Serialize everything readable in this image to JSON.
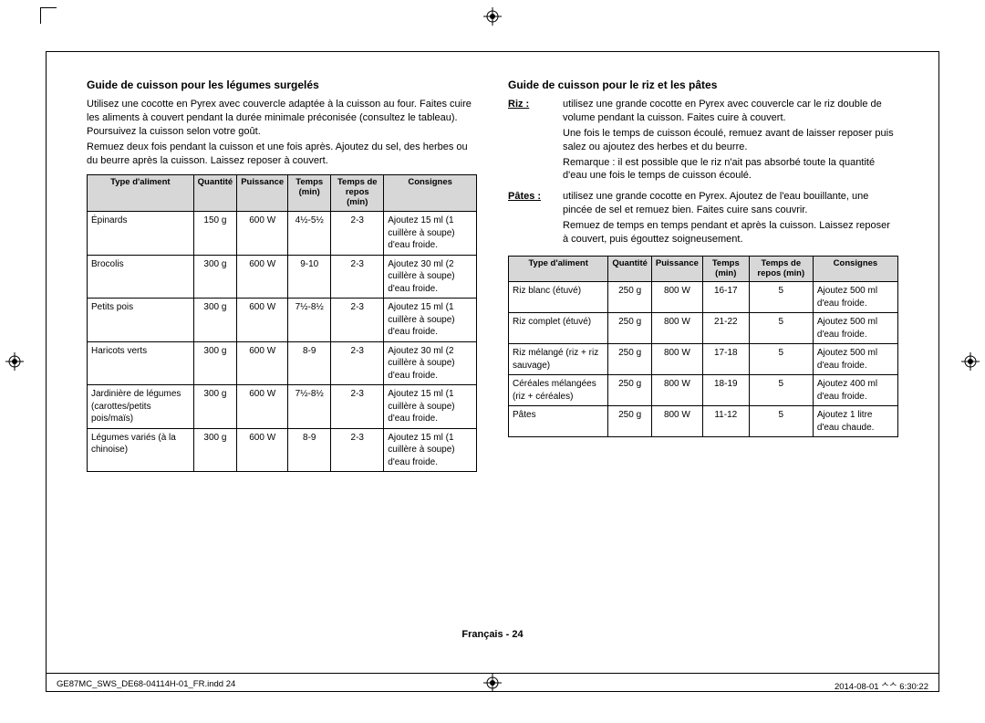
{
  "left": {
    "heading": "Guide de cuisson pour les légumes surgelés",
    "intro1": "Utilisez une cocotte en Pyrex avec couvercle adaptée à la cuisson au four. Faites cuire les aliments à couvert pendant la durée minimale préconisée (consultez le tableau). Poursuivez la cuisson selon votre goût.",
    "intro2": "Remuez deux fois pendant la cuisson et une fois après. Ajoutez du sel, des herbes ou du beurre après la cuisson. Laissez reposer à couvert.",
    "headers": [
      "Type d'aliment",
      "Quantité",
      "Puissance",
      "Temps (min)",
      "Temps de repos (min)",
      "Consignes"
    ],
    "rows": [
      {
        "food": "Épinards",
        "qty": "150 g",
        "pwr": "600 W",
        "time": "4½-5½",
        "rest": "2-3",
        "note": "Ajoutez 15 ml (1 cuillère à soupe) d'eau froide."
      },
      {
        "food": "Brocolis",
        "qty": "300 g",
        "pwr": "600 W",
        "time": "9-10",
        "rest": "2-3",
        "note": "Ajoutez 30 ml (2 cuillère à soupe) d'eau froide."
      },
      {
        "food": "Petits pois",
        "qty": "300 g",
        "pwr": "600 W",
        "time": "7½-8½",
        "rest": "2-3",
        "note": "Ajoutez 15 ml (1 cuillère à soupe) d'eau froide."
      },
      {
        "food": "Haricots verts",
        "qty": "300 g",
        "pwr": "600 W",
        "time": "8-9",
        "rest": "2-3",
        "note": "Ajoutez 30 ml (2 cuillère à soupe) d'eau froide."
      },
      {
        "food": "Jardinière de légumes (carottes/petits pois/maïs)",
        "qty": "300 g",
        "pwr": "600 W",
        "time": "7½-8½",
        "rest": "2-3",
        "note": "Ajoutez 15 ml (1 cuillère à soupe) d'eau froide."
      },
      {
        "food": "Légumes variés (à la chinoise)",
        "qty": "300 g",
        "pwr": "600 W",
        "time": "8-9",
        "rest": "2-3",
        "note": "Ajoutez 15 ml (1 cuillère à soupe) d'eau froide."
      }
    ]
  },
  "right": {
    "heading": "Guide de cuisson pour le riz et les pâtes",
    "riz_term": "Riz :",
    "riz1": "utilisez une grande cocotte en Pyrex avec couvercle car le riz double de volume pendant la cuisson. Faites cuire à couvert.",
    "riz2": "Une fois le temps de cuisson écoulé, remuez avant de laisser reposer puis salez ou ajoutez des herbes et du beurre.",
    "riz3": "Remarque : il est possible que le riz n'ait pas absorbé toute la quantité d'eau une fois le temps de cuisson écoulé.",
    "pates_term": "Pâtes :",
    "pates1": "utilisez une grande cocotte en Pyrex. Ajoutez de l'eau bouillante, une pincée de sel et remuez bien. Faites cuire sans couvrir.",
    "pates2": "Remuez de temps en temps pendant et après la cuisson. Laissez reposer à couvert, puis égouttez soigneusement.",
    "headers": [
      "Type d'aliment",
      "Quantité",
      "Puissance",
      "Temps (min)",
      "Temps de repos (min)",
      "Consignes"
    ],
    "rows": [
      {
        "food": "Riz blanc (étuvé)",
        "qty": "250 g",
        "pwr": "800 W",
        "time": "16-17",
        "rest": "5",
        "note": "Ajoutez 500 ml d'eau froide."
      },
      {
        "food": "Riz complet (étuvé)",
        "qty": "250 g",
        "pwr": "800 W",
        "time": "21-22",
        "rest": "5",
        "note": "Ajoutez 500 ml d'eau froide."
      },
      {
        "food": "Riz mélangé (riz + riz sauvage)",
        "qty": "250 g",
        "pwr": "800 W",
        "time": "17-18",
        "rest": "5",
        "note": "Ajoutez 500 ml d'eau froide."
      },
      {
        "food": "Céréales mélangées (riz + céréales)",
        "qty": "250 g",
        "pwr": "800 W",
        "time": "18-19",
        "rest": "5",
        "note": "Ajoutez 400 ml d'eau froide."
      },
      {
        "food": "Pâtes",
        "qty": "250 g",
        "pwr": "800 W",
        "time": "11-12",
        "rest": "5",
        "note": "Ajoutez 1 litre d'eau chaude."
      }
    ]
  },
  "footer": {
    "center": "Français - 24",
    "left": "GE87MC_SWS_DE68-04114H-01_FR.indd   24",
    "right": "2014-08-01   ᄉᄉ 6:30:22"
  },
  "colors": {
    "header_bg": "#d7d7d7",
    "border": "#000000",
    "text": "#000000",
    "bg": "#ffffff"
  }
}
